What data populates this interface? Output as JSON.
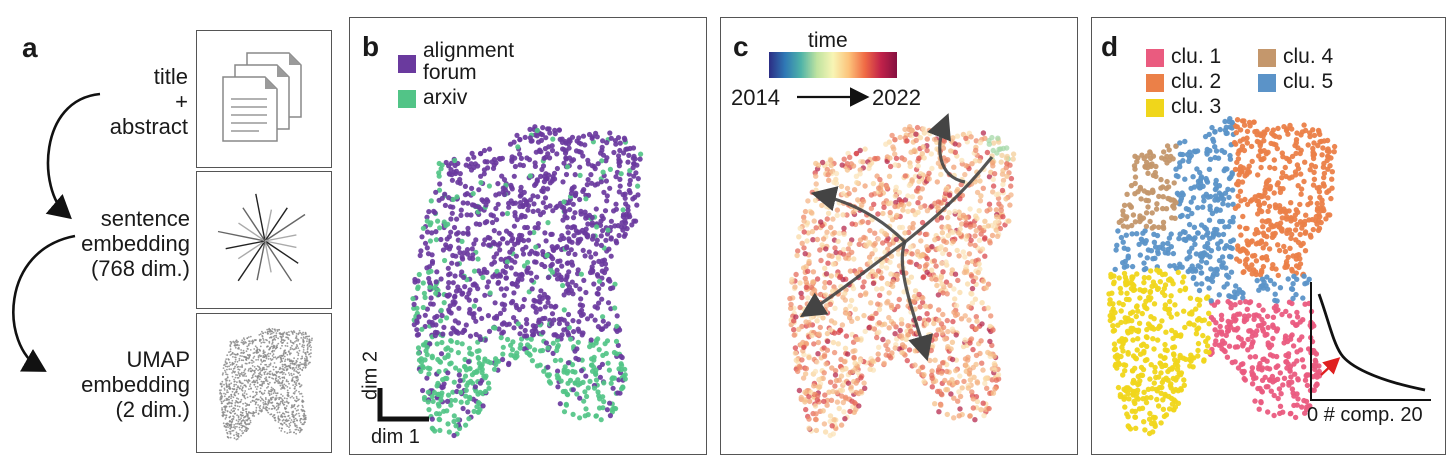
{
  "panels": {
    "a": {
      "letter": "a",
      "steps": [
        {
          "lines": [
            "title",
            "+",
            "abstract"
          ],
          "icon": "documents-icon"
        },
        {
          "lines": [
            "sentence",
            "embedding",
            "(768 dim.)"
          ],
          "icon": "vectors-icon"
        },
        {
          "lines": [
            "UMAP",
            "embedding",
            "(2 dim.)"
          ],
          "icon": "point-cloud-icon"
        }
      ]
    },
    "b": {
      "letter": "b",
      "legend": [
        {
          "label_lines": [
            "alignment",
            "forum"
          ],
          "color": "#6a3a9e"
        },
        {
          "label_lines": [
            "arxiv"
          ],
          "color": "#52c487"
        }
      ],
      "scale_bar": {
        "y_label": "dim 2",
        "x_label": "dim 1"
      }
    },
    "c": {
      "letter": "c",
      "colorbar": {
        "label": "time",
        "start": "2014",
        "end": "2022",
        "colors": [
          "#2c2d84",
          "#2f78b5",
          "#4fb3a8",
          "#bfe3a0",
          "#f8f5b5",
          "#fcc27a",
          "#ef6a45",
          "#c1224a",
          "#851040"
        ]
      }
    },
    "d": {
      "letter": "d",
      "legend": [
        {
          "label": "clu. 1",
          "color": "#ea5b7f"
        },
        {
          "label": "clu. 2",
          "color": "#eb8048"
        },
        {
          "label": "clu. 3",
          "color": "#f0d61b"
        },
        {
          "label": "clu. 4",
          "color": "#c4976c"
        },
        {
          "label": "clu. 5",
          "color": "#5b93c8"
        }
      ],
      "inset": {
        "x_start": "0",
        "x_label": "# comp.",
        "x_end": "20",
        "arrow_color": "#e02020"
      }
    }
  }
}
